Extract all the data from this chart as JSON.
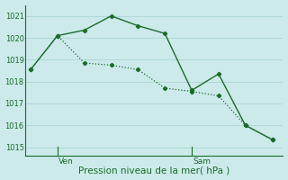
{
  "line1_x": [
    0,
    1,
    2,
    3,
    4,
    5,
    6,
    7,
    8,
    9
  ],
  "line1_y": [
    1018.55,
    1020.1,
    1020.35,
    1021.0,
    1020.55,
    1020.2,
    1017.6,
    1018.35,
    1016.0,
    1015.35
  ],
  "line2_x": [
    0,
    1,
    2,
    3,
    4,
    5,
    6,
    7,
    8,
    9
  ],
  "line2_y": [
    1018.55,
    1020.1,
    1018.85,
    1018.75,
    1018.55,
    1017.7,
    1017.55,
    1017.35,
    1016.0,
    1015.35
  ],
  "ven_x": 1.0,
  "sam_x": 6.0,
  "ylim": [
    1014.6,
    1021.5
  ],
  "yticks": [
    1015,
    1016,
    1017,
    1018,
    1019,
    1020,
    1021
  ],
  "xlim": [
    -0.2,
    9.4
  ],
  "bg_color": "#cceaea",
  "grid_color": "#b0d8d8",
  "line_color": "#1a6b2a",
  "xlabel": "Pression niveau de la mer( hPa )",
  "tick_color": "#1a6b2a",
  "label_ven": "Ven",
  "label_sam": "Sam",
  "label_fontsize": 6.5,
  "xlabel_fontsize": 7.5,
  "ytick_fontsize": 6.0
}
